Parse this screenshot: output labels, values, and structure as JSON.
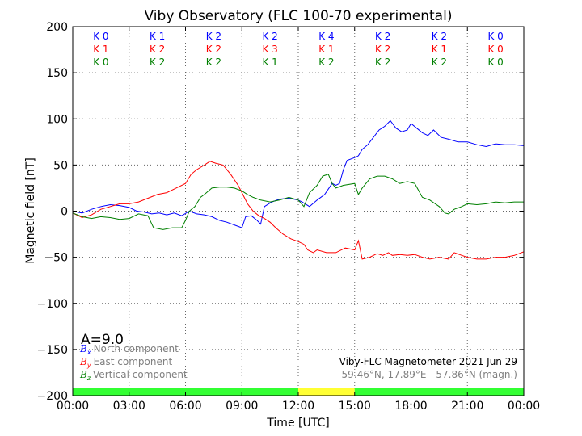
{
  "chart_data": {
    "type": "line",
    "title": "Viby Observatory (FLC 100-70 experimental)",
    "xlabel": "Time [UTC]",
    "ylabel": "Magnetic field [nT]",
    "xlim": [
      0,
      24
    ],
    "ylim": [
      -200,
      200
    ],
    "x_ticks": [
      0,
      3,
      6,
      9,
      12,
      15,
      18,
      21,
      24
    ],
    "x_tick_labels": [
      "00:00",
      "03:00",
      "06:00",
      "09:00",
      "12:00",
      "15:00",
      "18:00",
      "21:00",
      "00:00"
    ],
    "y_ticks": [
      -200,
      -150,
      -100,
      -50,
      0,
      50,
      100,
      150,
      200
    ],
    "y_tick_labels": [
      "−200",
      "−150",
      "−100",
      "−50",
      "0",
      "50",
      "100",
      "150",
      "200"
    ],
    "grid": true,
    "series": [
      {
        "name": "North component",
        "symbol": "B",
        "subscript": "x",
        "color": "#0000ff",
        "points": [
          [
            0,
            0
          ],
          [
            0.5,
            -2
          ],
          [
            1,
            2
          ],
          [
            1.5,
            5
          ],
          [
            2,
            7
          ],
          [
            2.5,
            6
          ],
          [
            3,
            4
          ],
          [
            3.4,
            0
          ],
          [
            3.8,
            -1
          ],
          [
            4.2,
            -3
          ],
          [
            4.6,
            -2
          ],
          [
            5,
            -4
          ],
          [
            5.4,
            -2
          ],
          [
            5.8,
            -5
          ],
          [
            6.2,
            0
          ],
          [
            6.6,
            -3
          ],
          [
            7,
            -4
          ],
          [
            7.4,
            -6
          ],
          [
            7.8,
            -10
          ],
          [
            8.2,
            -12
          ],
          [
            8.6,
            -15
          ],
          [
            9,
            -18
          ],
          [
            9.2,
            -6
          ],
          [
            9.5,
            -5
          ],
          [
            9.8,
            -10
          ],
          [
            10,
            -14
          ],
          [
            10.2,
            5
          ],
          [
            10.6,
            10
          ],
          [
            11,
            13
          ],
          [
            11.5,
            14
          ],
          [
            12,
            12
          ],
          [
            12.2,
            10
          ],
          [
            12.6,
            5
          ],
          [
            13,
            12
          ],
          [
            13.4,
            18
          ],
          [
            13.8,
            30
          ],
          [
            14,
            28
          ],
          [
            14.2,
            30
          ],
          [
            14.4,
            45
          ],
          [
            14.6,
            55
          ],
          [
            15,
            58
          ],
          [
            15.2,
            60
          ],
          [
            15.4,
            67
          ],
          [
            15.7,
            72
          ],
          [
            16,
            80
          ],
          [
            16.3,
            88
          ],
          [
            16.6,
            92
          ],
          [
            16.9,
            98
          ],
          [
            17.2,
            90
          ],
          [
            17.5,
            86
          ],
          [
            17.8,
            88
          ],
          [
            18,
            95
          ],
          [
            18.3,
            90
          ],
          [
            18.6,
            85
          ],
          [
            18.9,
            82
          ],
          [
            19.2,
            88
          ],
          [
            19.6,
            80
          ],
          [
            20,
            78
          ],
          [
            20.5,
            75
          ],
          [
            21,
            75
          ],
          [
            21.5,
            72
          ],
          [
            22,
            70
          ],
          [
            22.5,
            73
          ],
          [
            23,
            72
          ],
          [
            23.5,
            72
          ],
          [
            24,
            71
          ]
        ]
      },
      {
        "name": "East component",
        "symbol": "B",
        "subscript": "y",
        "color": "#ff0000",
        "points": [
          [
            0,
            -2
          ],
          [
            0.5,
            -7
          ],
          [
            1,
            -4
          ],
          [
            1.5,
            2
          ],
          [
            2,
            5
          ],
          [
            2.5,
            8
          ],
          [
            3,
            8
          ],
          [
            3.5,
            10
          ],
          [
            4,
            14
          ],
          [
            4.5,
            18
          ],
          [
            5,
            20
          ],
          [
            5.5,
            25
          ],
          [
            6,
            30
          ],
          [
            6.3,
            40
          ],
          [
            6.6,
            45
          ],
          [
            7,
            50
          ],
          [
            7.3,
            54
          ],
          [
            7.6,
            52
          ],
          [
            8,
            50
          ],
          [
            8.4,
            40
          ],
          [
            8.8,
            28
          ],
          [
            9,
            20
          ],
          [
            9.3,
            8
          ],
          [
            9.6,
            0
          ],
          [
            9.9,
            -5
          ],
          [
            10.2,
            -8
          ],
          [
            10.5,
            -12
          ],
          [
            10.8,
            -18
          ],
          [
            11.2,
            -25
          ],
          [
            11.6,
            -30
          ],
          [
            12,
            -33
          ],
          [
            12.3,
            -36
          ],
          [
            12.5,
            -42
          ],
          [
            12.8,
            -45
          ],
          [
            13,
            -42
          ],
          [
            13.5,
            -45
          ],
          [
            14,
            -45
          ],
          [
            14.5,
            -40
          ],
          [
            15,
            -42
          ],
          [
            15.2,
            -32
          ],
          [
            15.4,
            -52
          ],
          [
            15.8,
            -50
          ],
          [
            16.2,
            -46
          ],
          [
            16.5,
            -48
          ],
          [
            16.8,
            -45
          ],
          [
            17,
            -48
          ],
          [
            17.4,
            -47
          ],
          [
            17.8,
            -48
          ],
          [
            18.2,
            -47
          ],
          [
            18.6,
            -50
          ],
          [
            19,
            -52
          ],
          [
            19.5,
            -50
          ],
          [
            20,
            -52
          ],
          [
            20.3,
            -45
          ],
          [
            20.7,
            -48
          ],
          [
            21,
            -50
          ],
          [
            21.5,
            -52
          ],
          [
            22,
            -52
          ],
          [
            22.5,
            -50
          ],
          [
            23,
            -50
          ],
          [
            23.5,
            -48
          ],
          [
            24,
            -44
          ]
        ]
      },
      {
        "name": "Vertical component",
        "symbol": "B",
        "subscript": "z",
        "color": "#008000",
        "points": [
          [
            0,
            -2
          ],
          [
            0.5,
            -6
          ],
          [
            1,
            -8
          ],
          [
            1.5,
            -6
          ],
          [
            2,
            -7
          ],
          [
            2.5,
            -9
          ],
          [
            3,
            -8
          ],
          [
            3.5,
            -3
          ],
          [
            4,
            -5
          ],
          [
            4.3,
            -18
          ],
          [
            4.8,
            -20
          ],
          [
            5.3,
            -18
          ],
          [
            5.8,
            -18
          ],
          [
            6,
            -10
          ],
          [
            6.2,
            0
          ],
          [
            6.5,
            5
          ],
          [
            6.8,
            15
          ],
          [
            7,
            18
          ],
          [
            7.4,
            25
          ],
          [
            7.8,
            26
          ],
          [
            8.2,
            26
          ],
          [
            8.6,
            25
          ],
          [
            9,
            22
          ],
          [
            9.3,
            18
          ],
          [
            9.6,
            15
          ],
          [
            10,
            12
          ],
          [
            10.5,
            10
          ],
          [
            11,
            12
          ],
          [
            11.5,
            15
          ],
          [
            12,
            12
          ],
          [
            12.3,
            5
          ],
          [
            12.6,
            20
          ],
          [
            13,
            28
          ],
          [
            13.3,
            38
          ],
          [
            13.6,
            40
          ],
          [
            13.8,
            30
          ],
          [
            14,
            25
          ],
          [
            14.4,
            28
          ],
          [
            15,
            30
          ],
          [
            15.2,
            18
          ],
          [
            15.4,
            25
          ],
          [
            15.8,
            35
          ],
          [
            16.2,
            38
          ],
          [
            16.6,
            38
          ],
          [
            17,
            35
          ],
          [
            17.4,
            30
          ],
          [
            17.8,
            32
          ],
          [
            18.2,
            30
          ],
          [
            18.6,
            15
          ],
          [
            19,
            12
          ],
          [
            19.5,
            5
          ],
          [
            19.8,
            -2
          ],
          [
            20,
            -3
          ],
          [
            20.3,
            2
          ],
          [
            20.7,
            5
          ],
          [
            21,
            8
          ],
          [
            21.5,
            7
          ],
          [
            22,
            8
          ],
          [
            22.5,
            10
          ],
          [
            23,
            9
          ],
          [
            23.5,
            10
          ],
          [
            24,
            10
          ]
        ]
      }
    ],
    "k_index_rows": [
      {
        "color": "#0000ff",
        "values": [
          "K 0",
          "K 1",
          "K 2",
          "K 2",
          "K 4",
          "K 2",
          "K 2",
          "K 0"
        ]
      },
      {
        "color": "#ff0000",
        "values": [
          "K 1",
          "K 2",
          "K 2",
          "K 3",
          "K 1",
          "K 2",
          "K 1",
          "K 0"
        ]
      },
      {
        "color": "#008000",
        "values": [
          "K 0",
          "K 2",
          "K 2",
          "K 1",
          "K 2",
          "K 2",
          "K 2",
          "K 0"
        ]
      }
    ],
    "a_index": "A=9.0",
    "status_bar": [
      {
        "from": 0,
        "to": 12,
        "color": "#33ff33"
      },
      {
        "from": 12,
        "to": 15,
        "color": "#ffff33"
      },
      {
        "from": 15,
        "to": 24,
        "color": "#33ff33"
      }
    ],
    "info_title": "Viby-FLC Magnetometer 2021 Jun 29",
    "info_coords": "59.46°N, 17.89°E - 57.86°N (magn.)"
  }
}
